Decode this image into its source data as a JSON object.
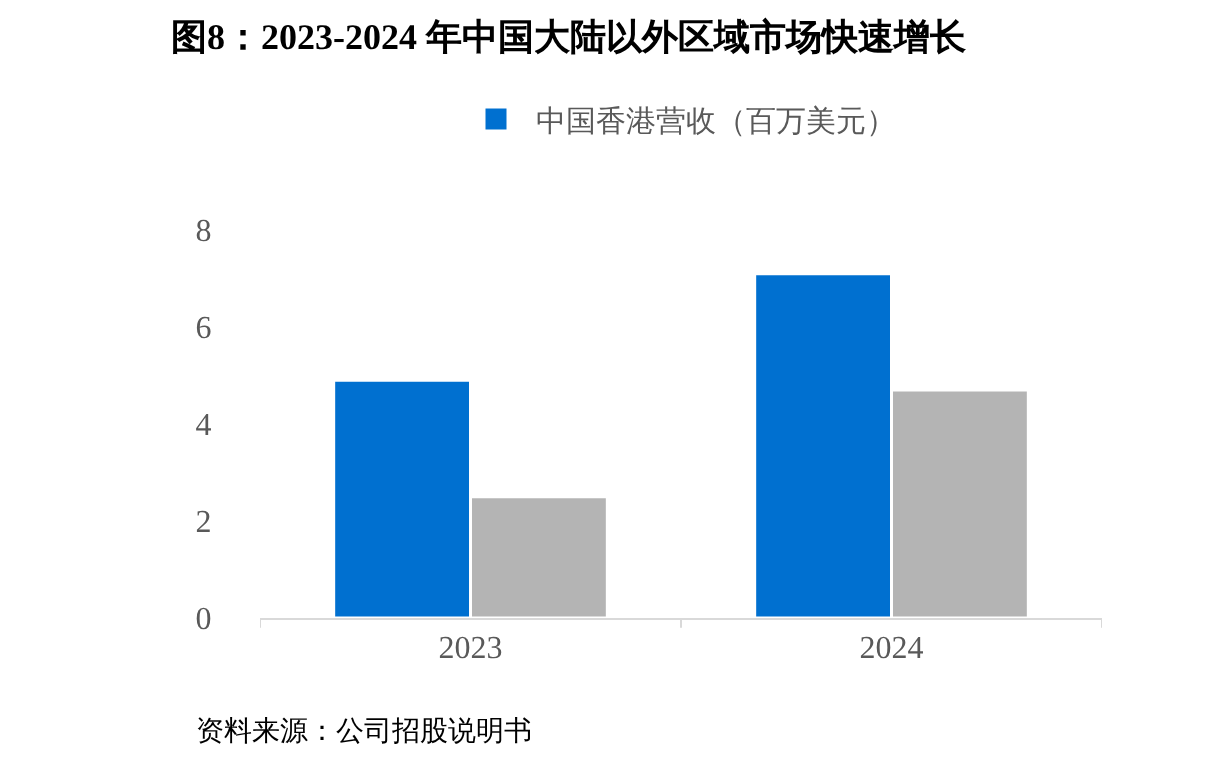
{
  "chart_data": {
    "type": "bar",
    "title": "图8：2023-2024 年中国大陆以外区域市场快速增长",
    "categories": [
      "2023",
      "2024"
    ],
    "series": [
      {
        "name": "中国香港营收（百万美元）",
        "color": "#0070d0",
        "values": [
          4.9,
          7.1
        ]
      },
      {
        "color": "#b4b4b4",
        "values": [
          2.5,
          4.7
        ]
      }
    ],
    "ylim": [
      0,
      8
    ],
    "yticks": [
      0,
      2,
      4,
      6,
      8
    ],
    "legend": "top",
    "annotations": [
      "资料来源：公司招股说明书"
    ]
  }
}
